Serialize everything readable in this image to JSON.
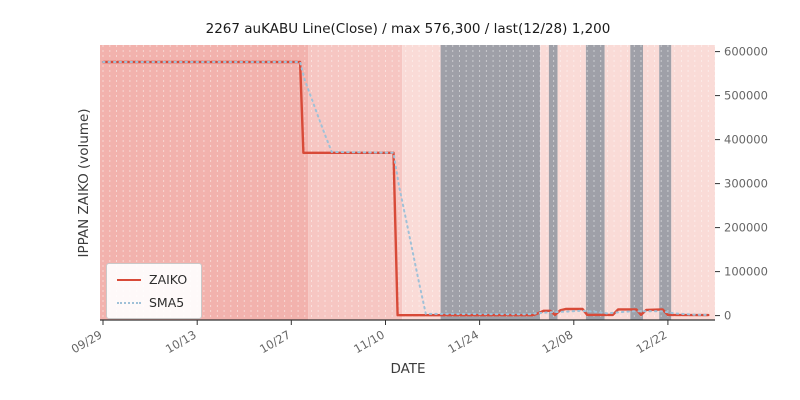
{
  "chart_data": {
    "type": "line",
    "title": "2267 auKABU Line(Close) / max 576,300 / last(12/28) 1,200",
    "xlabel": "DATE",
    "ylabel": "IPPAN ZAIKO (volume)",
    "max_value": 576300,
    "last_date": "12/28",
    "last_value": 1200,
    "xlim": [
      -0.45,
      91
    ],
    "ylim": [
      -10000,
      615000
    ],
    "yticks": [
      0,
      100000,
      200000,
      300000,
      400000,
      500000,
      600000
    ],
    "xticks": [
      {
        "day": 0,
        "label": "09/29"
      },
      {
        "day": 14,
        "label": "10/13"
      },
      {
        "day": 28,
        "label": "10/27"
      },
      {
        "day": 42,
        "label": "11/10"
      },
      {
        "day": 56,
        "label": "11/24"
      },
      {
        "day": 70,
        "label": "12/08"
      },
      {
        "day": 84,
        "label": "12/22"
      }
    ],
    "series": [
      {
        "name": "ZAIKO",
        "color": "#d84a38",
        "style": "solid",
        "points": [
          [
            0,
            576300
          ],
          [
            29.3,
            576300
          ],
          [
            29.8,
            370000
          ],
          [
            43.2,
            370000
          ],
          [
            43.8,
            1000
          ],
          [
            64,
            1000
          ],
          [
            64.8,
            6000
          ],
          [
            65.5,
            11000
          ],
          [
            66.5,
            11000
          ],
          [
            67.2,
            1500
          ],
          [
            68,
            12000
          ],
          [
            68.8,
            15000
          ],
          [
            71.3,
            15000
          ],
          [
            72,
            1500
          ],
          [
            75.8,
            1500
          ],
          [
            76.6,
            14000
          ],
          [
            79.3,
            14000
          ],
          [
            80,
            1500
          ],
          [
            80.8,
            13000
          ],
          [
            83.2,
            14000
          ],
          [
            84,
            1500
          ],
          [
            89.5,
            1200
          ],
          [
            90,
            1200
          ]
        ]
      },
      {
        "name": "SMA5",
        "color": "#9fc1d8",
        "style": "dotted",
        "points": [
          [
            0,
            576300
          ],
          [
            29.3,
            576300
          ],
          [
            30,
            535000
          ],
          [
            31,
            494000
          ],
          [
            32,
            452000
          ],
          [
            33,
            411000
          ],
          [
            34,
            372000
          ],
          [
            43.2,
            370000
          ],
          [
            44,
            296000
          ],
          [
            45,
            222000
          ],
          [
            46,
            148000
          ],
          [
            47,
            74000
          ],
          [
            48,
            4000
          ],
          [
            63,
            3000
          ],
          [
            65,
            6000
          ],
          [
            67,
            8000
          ],
          [
            69,
            9000
          ],
          [
            71,
            11000
          ],
          [
            73,
            9000
          ],
          [
            75,
            5000
          ],
          [
            77,
            8000
          ],
          [
            79,
            10000
          ],
          [
            81,
            10000
          ],
          [
            83,
            10000
          ],
          [
            85,
            5000
          ],
          [
            88,
            2000
          ],
          [
            90,
            1500
          ]
        ]
      }
    ],
    "bands": [
      {
        "from": -0.45,
        "to": 30.5,
        "color": "#f2b2ad"
      },
      {
        "from": 30.5,
        "to": 44.5,
        "color": "#f6c6c2"
      },
      {
        "from": 44.5,
        "to": 50.2,
        "color": "#fadbd7"
      },
      {
        "from": 50.2,
        "to": 65.0,
        "color": "#9fa0a8"
      },
      {
        "from": 65.0,
        "to": 66.3,
        "color": "#fadbd7"
      },
      {
        "from": 66.3,
        "to": 67.6,
        "color": "#9fa0a8"
      },
      {
        "from": 67.6,
        "to": 71.8,
        "color": "#fadbd7"
      },
      {
        "from": 71.8,
        "to": 74.6,
        "color": "#9fa0a8"
      },
      {
        "from": 74.6,
        "to": 78.4,
        "color": "#fadbd7"
      },
      {
        "from": 78.4,
        "to": 80.3,
        "color": "#9fa0a8"
      },
      {
        "from": 80.3,
        "to": 82.7,
        "color": "#fadbd7"
      },
      {
        "from": 82.7,
        "to": 84.5,
        "color": "#9fa0a8"
      },
      {
        "from": 84.5,
        "to": 91.0,
        "color": "#fadbd7"
      }
    ]
  }
}
